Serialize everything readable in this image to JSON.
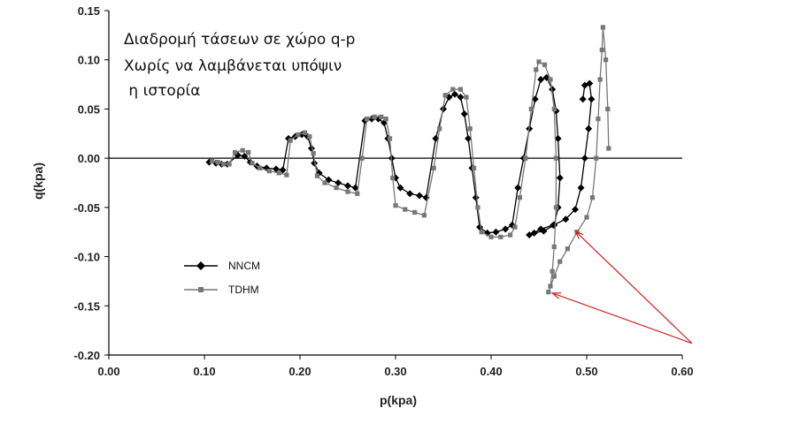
{
  "chart_data": {
    "type": "line",
    "title": "",
    "xlabel": "p(kpa)",
    "ylabel": "q(kpa)",
    "xlim": [
      0.0,
      0.6
    ],
    "ylim": [
      -0.2,
      0.15
    ],
    "x_ticks": [
      "0.00",
      "0.10",
      "0.20",
      "0.30",
      "0.40",
      "0.50",
      "0.60"
    ],
    "y_ticks": [
      "0.15",
      "0.10",
      "0.05",
      "0.00",
      "-0.05",
      "-0.10",
      "-0.15",
      "-0.20"
    ],
    "grid": false,
    "legend_position": "lower-left",
    "annotation_lines": [
      "Διαδρομή τάσεων σε χώρο q-p",
      "Χωρίς να λαμβάνεται υπόψιν",
      " η ιστορία"
    ],
    "series": [
      {
        "name": "NNCM",
        "color": "#000000",
        "marker": "diamond",
        "points": [
          [
            0.105,
            -0.004
          ],
          [
            0.112,
            -0.005
          ],
          [
            0.118,
            -0.006
          ],
          [
            0.124,
            -0.006
          ],
          [
            0.135,
            0.003
          ],
          [
            0.142,
            0.002
          ],
          [
            0.148,
            -0.004
          ],
          [
            0.155,
            -0.008
          ],
          [
            0.165,
            -0.01
          ],
          [
            0.175,
            -0.011
          ],
          [
            0.182,
            -0.012
          ],
          [
            0.188,
            0.02
          ],
          [
            0.195,
            0.022
          ],
          [
            0.202,
            0.024
          ],
          [
            0.208,
            0.022
          ],
          [
            0.212,
            0.01
          ],
          [
            0.215,
            -0.005
          ],
          [
            0.22,
            -0.015
          ],
          [
            0.23,
            -0.022
          ],
          [
            0.24,
            -0.025
          ],
          [
            0.25,
            -0.028
          ],
          [
            0.258,
            -0.03
          ],
          [
            0.268,
            0.038
          ],
          [
            0.275,
            0.04
          ],
          [
            0.282,
            0.04
          ],
          [
            0.288,
            0.036
          ],
          [
            0.292,
            0.02
          ],
          [
            0.296,
            0.0
          ],
          [
            0.3,
            -0.02
          ],
          [
            0.305,
            -0.03
          ],
          [
            0.315,
            -0.036
          ],
          [
            0.325,
            -0.038
          ],
          [
            0.332,
            -0.04
          ],
          [
            0.342,
            0.02
          ],
          [
            0.35,
            0.05
          ],
          [
            0.356,
            0.062
          ],
          [
            0.362,
            0.065
          ],
          [
            0.368,
            0.062
          ],
          [
            0.372,
            0.045
          ],
          [
            0.376,
            0.02
          ],
          [
            0.38,
            -0.01
          ],
          [
            0.384,
            -0.04
          ],
          [
            0.388,
            -0.07
          ],
          [
            0.396,
            -0.076
          ],
          [
            0.405,
            -0.075
          ],
          [
            0.415,
            -0.072
          ],
          [
            0.422,
            -0.068
          ],
          [
            0.428,
            -0.03
          ],
          [
            0.434,
            0.0
          ],
          [
            0.44,
            0.03
          ],
          [
            0.446,
            0.06
          ],
          [
            0.452,
            0.08
          ],
          [
            0.458,
            0.082
          ],
          [
            0.464,
            0.07
          ],
          [
            0.468,
            0.048
          ],
          [
            0.47,
            0.02
          ],
          [
            0.472,
            -0.02
          ],
          [
            0.47,
            -0.05
          ],
          [
            0.466,
            -0.068
          ],
          [
            0.455,
            -0.074
          ],
          [
            0.445,
            -0.076
          ],
          [
            0.44,
            -0.078
          ],
          [
            0.452,
            -0.072
          ],
          [
            0.465,
            -0.068
          ],
          [
            0.478,
            -0.062
          ],
          [
            0.488,
            -0.052
          ],
          [
            0.494,
            -0.03
          ],
          [
            0.498,
            0.0
          ],
          [
            0.502,
            0.03
          ],
          [
            0.505,
            0.06
          ],
          [
            0.503,
            0.076
          ],
          [
            0.498,
            0.074
          ],
          [
            0.496,
            0.06
          ]
        ]
      },
      {
        "name": "TDHM",
        "color": "#777777",
        "marker": "square",
        "points": [
          [
            0.108,
            -0.003
          ],
          [
            0.114,
            -0.004
          ],
          [
            0.12,
            -0.006
          ],
          [
            0.126,
            -0.006
          ],
          [
            0.132,
            0.006
          ],
          [
            0.14,
            0.008
          ],
          [
            0.146,
            0.006
          ],
          [
            0.15,
            -0.005
          ],
          [
            0.158,
            -0.01
          ],
          [
            0.168,
            -0.013
          ],
          [
            0.178,
            -0.015
          ],
          [
            0.186,
            -0.017
          ],
          [
            0.19,
            0.018
          ],
          [
            0.198,
            0.024
          ],
          [
            0.205,
            0.026
          ],
          [
            0.21,
            0.022
          ],
          [
            0.214,
            0.005
          ],
          [
            0.218,
            -0.018
          ],
          [
            0.226,
            -0.025
          ],
          [
            0.238,
            -0.03
          ],
          [
            0.25,
            -0.034
          ],
          [
            0.26,
            -0.036
          ],
          [
            0.265,
            0.0
          ],
          [
            0.27,
            0.04
          ],
          [
            0.278,
            0.042
          ],
          [
            0.285,
            0.042
          ],
          [
            0.29,
            0.04
          ],
          [
            0.294,
            0.02
          ],
          [
            0.297,
            -0.02
          ],
          [
            0.3,
            -0.048
          ],
          [
            0.31,
            -0.052
          ],
          [
            0.32,
            -0.055
          ],
          [
            0.33,
            -0.058
          ],
          [
            0.34,
            -0.01
          ],
          [
            0.346,
            0.03
          ],
          [
            0.352,
            0.064
          ],
          [
            0.36,
            0.07
          ],
          [
            0.368,
            0.07
          ],
          [
            0.374,
            0.062
          ],
          [
            0.378,
            0.03
          ],
          [
            0.382,
            -0.01
          ],
          [
            0.386,
            -0.05
          ],
          [
            0.39,
            -0.075
          ],
          [
            0.4,
            -0.08
          ],
          [
            0.41,
            -0.08
          ],
          [
            0.42,
            -0.078
          ],
          [
            0.425,
            -0.07
          ],
          [
            0.43,
            -0.04
          ],
          [
            0.436,
            0.0
          ],
          [
            0.442,
            0.05
          ],
          [
            0.447,
            0.09
          ],
          [
            0.45,
            0.098
          ],
          [
            0.456,
            0.095
          ],
          [
            0.462,
            0.08
          ],
          [
            0.466,
            0.05
          ],
          [
            0.468,
            0.0
          ],
          [
            0.468,
            -0.05
          ],
          [
            0.466,
            -0.09
          ],
          [
            0.464,
            -0.115
          ],
          [
            0.462,
            -0.13
          ],
          [
            0.46,
            -0.136
          ],
          [
            0.466,
            -0.12
          ],
          [
            0.472,
            -0.105
          ],
          [
            0.48,
            -0.092
          ],
          [
            0.49,
            -0.075
          ],
          [
            0.5,
            -0.06
          ],
          [
            0.506,
            -0.04
          ],
          [
            0.51,
            0.0
          ],
          [
            0.512,
            0.04
          ],
          [
            0.514,
            0.08
          ],
          [
            0.516,
            0.11
          ],
          [
            0.517,
            0.133
          ],
          [
            0.52,
            0.1
          ],
          [
            0.522,
            0.05
          ],
          [
            0.523,
            0.01
          ]
        ]
      }
    ],
    "arrows": [
      {
        "from": [
          0.61,
          -0.188
        ],
        "to": [
          0.488,
          -0.074
        ]
      },
      {
        "from": [
          0.61,
          -0.188
        ],
        "to": [
          0.464,
          -0.137
        ]
      }
    ]
  }
}
